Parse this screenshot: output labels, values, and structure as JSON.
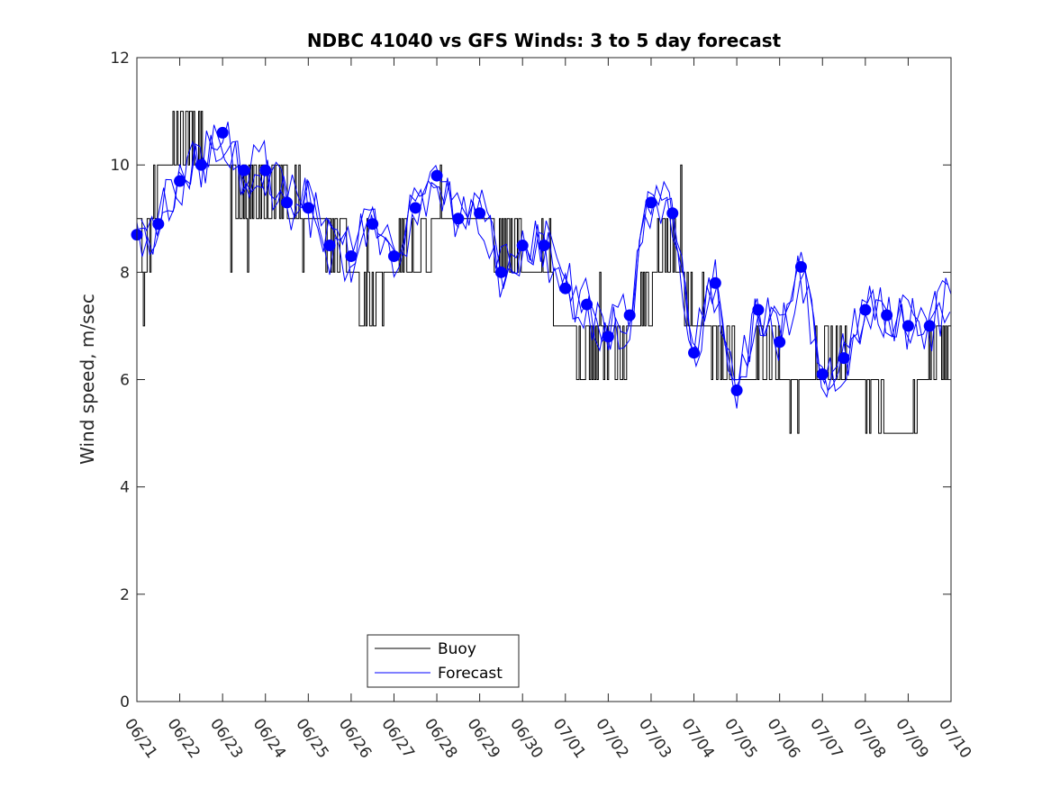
{
  "chart_data": {
    "type": "line",
    "title": "NDBC 41040 vs GFS Winds: 3 to 5 day forecast",
    "xlabel": "",
    "ylabel": "Wind speed, m/sec",
    "xlim": [
      "06/21",
      "07/10"
    ],
    "ylim": [
      0,
      12
    ],
    "yticks": [
      0,
      2,
      4,
      6,
      8,
      10,
      12
    ],
    "xticks": [
      "06/21",
      "06/22",
      "06/23",
      "06/24",
      "06/25",
      "06/26",
      "06/27",
      "06/28",
      "06/29",
      "06/30",
      "07/01",
      "07/02",
      "07/03",
      "07/04",
      "07/05",
      "07/06",
      "07/07",
      "07/08",
      "07/09",
      "07/10"
    ],
    "grid": false,
    "legend": {
      "location": "bottom-center",
      "entries": [
        "Buoy",
        "Forecast"
      ]
    },
    "colors": {
      "buoy": "#000000",
      "forecast": "#0000ff",
      "axes": "#262626"
    },
    "series": [
      {
        "name": "Buoy",
        "x_day": [
          0,
          0.15,
          0.35,
          0.55,
          0.75,
          0.95,
          1.15,
          1.35,
          1.6,
          1.85,
          2.1,
          2.35,
          2.6,
          2.85,
          3.1,
          3.35,
          3.6,
          3.85,
          4.1,
          4.35,
          4.6,
          4.85,
          5.1,
          5.35,
          5.6,
          5.85,
          6.1,
          6.35,
          6.6,
          6.85,
          7.1,
          7.35,
          7.6,
          7.85,
          8.1,
          8.35,
          8.6,
          8.85,
          9.1,
          9.35,
          9.6,
          9.85,
          10.1,
          10.35,
          10.6,
          10.85,
          11.1,
          11.35,
          11.6,
          11.85,
          12.1,
          12.35,
          12.6,
          12.85,
          13.1,
          13.35,
          13.6,
          13.85,
          14.1,
          14.35,
          14.6,
          14.85,
          15.1,
          15.35,
          15.6,
          15.85,
          16.1,
          16.35,
          16.6,
          16.85,
          17.1,
          17.35,
          17.6,
          17.85,
          18.1,
          18.35,
          18.6,
          18.85,
          19.0
        ],
        "values": [
          9,
          8,
          9,
          10,
          10,
          10.5,
          10.5,
          10.5,
          10,
          10,
          10,
          9.5,
          9.5,
          9.5,
          9.5,
          9.5,
          9.5,
          9,
          9,
          9,
          8.5,
          8.5,
          8,
          7.5,
          7.5,
          8,
          8.5,
          8.5,
          8,
          8.5,
          9,
          9,
          9,
          9,
          9,
          8.5,
          8.5,
          8.5,
          8,
          8,
          7.5,
          7,
          7,
          6.5,
          6.5,
          6.5,
          6.5,
          6.5,
          7,
          7.5,
          8,
          8.5,
          8.5,
          7.5,
          7,
          7,
          6.5,
          6.5,
          6,
          6,
          6.5,
          6.5,
          6,
          5.5,
          6,
          6.5,
          6.5,
          6.5,
          6,
          6,
          5.5,
          5.5,
          5,
          5,
          5,
          6,
          6.5,
          6.5,
          7
        ]
      },
      {
        "name": "Forecast",
        "x_day": [
          0,
          0.5,
          1,
          1.5,
          2,
          2.5,
          3,
          3.5,
          4,
          4.5,
          5,
          5.5,
          6,
          6.5,
          7,
          7.5,
          8,
          8.5,
          9,
          9.5,
          10,
          10.5,
          11,
          11.5,
          12,
          12.5,
          13,
          13.5,
          14,
          14.5,
          15,
          15.5,
          16,
          16.5,
          17,
          17.5,
          18,
          18.5,
          19
        ],
        "values": [
          8.7,
          8.9,
          9.7,
          10,
          10.6,
          9.9,
          9.9,
          9.3,
          9.2,
          8.5,
          8.3,
          8.9,
          8.3,
          9.2,
          9.8,
          9,
          9.1,
          8,
          8.5,
          8.5,
          7.7,
          7.4,
          6.8,
          7.2,
          9.3,
          9.1,
          6.5,
          7.8,
          5.8,
          7.3,
          6.7,
          8.1,
          6.1,
          6.4,
          7.3,
          7.2,
          7,
          7,
          7.5
        ]
      }
    ]
  }
}
